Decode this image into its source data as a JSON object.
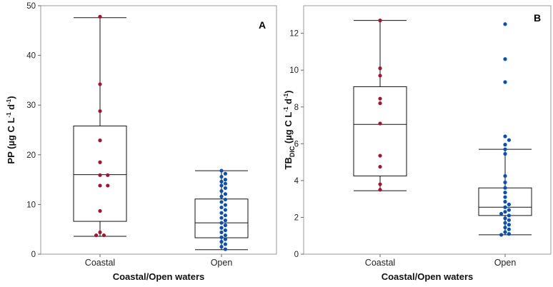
{
  "chart_data": [
    {
      "type": "box",
      "panel_label": "A",
      "xlabel": "Coastal/Open waters",
      "ylabel": {
        "main": "PP (µg C L",
        "sup1": "-1",
        "mid": " d",
        "sup2": "-1",
        "end": ")"
      },
      "ylim": [
        0,
        50
      ],
      "yticks": [
        0,
        10,
        20,
        30,
        40,
        50
      ],
      "categories": [
        "Coastal",
        "Open"
      ],
      "colors": {
        "Coastal": "#a0162e",
        "Open": "#0b4fb0"
      },
      "grid": false,
      "boxes": [
        {
          "category": "Coastal",
          "min": 3.6,
          "q1": 6.6,
          "median": 16.0,
          "q3": 25.8,
          "max": 47.6
        },
        {
          "category": "Open",
          "min": 0.9,
          "q1": 3.3,
          "median": 6.3,
          "q3": 11.1,
          "max": 16.8
        }
      ],
      "points": [
        {
          "category": "Coastal",
          "values": [
            47.8,
            34.2,
            28.8,
            22.9,
            18.5,
            15.9,
            15.9,
            13.8,
            13.8,
            8.7,
            4.4,
            3.8,
            3.8
          ]
        },
        {
          "category": "Open",
          "values": [
            16.8,
            16.2,
            15.6,
            15.0,
            14.6,
            14.2,
            13.8,
            13.3,
            12.7,
            12.1,
            11.6,
            11.0,
            10.5,
            9.9,
            9.4,
            8.9,
            8.3,
            7.8,
            7.3,
            6.8,
            6.3,
            5.8,
            5.3,
            4.8,
            4.4,
            3.8,
            3.4,
            3.0,
            2.5,
            2.0,
            1.5,
            1.0
          ]
        }
      ]
    },
    {
      "type": "box",
      "panel_label": "B",
      "xlabel": "Coastal/Open waters",
      "ylabel": {
        "main": "TB",
        "sub": "DIC",
        "rest": " (µg C L",
        "sup1": "-1",
        "mid": " d",
        "sup2": "-1",
        "end": ")"
      },
      "ylim": [
        0,
        13.5
      ],
      "yticks": [
        0,
        2,
        4,
        6,
        8,
        10,
        12
      ],
      "categories": [
        "Coastal",
        "Open"
      ],
      "colors": {
        "Coastal": "#a0162e",
        "Open": "#0b4fb0"
      },
      "grid": false,
      "boxes": [
        {
          "category": "Coastal",
          "min": 3.45,
          "q1": 4.25,
          "median": 7.05,
          "q3": 9.1,
          "max": 12.7
        },
        {
          "category": "Open",
          "min": 1.05,
          "q1": 2.1,
          "median": 2.55,
          "q3": 3.6,
          "max": 5.7
        }
      ],
      "points": [
        {
          "category": "Coastal",
          "values": [
            12.7,
            10.1,
            9.7,
            8.45,
            8.2,
            7.1,
            5.35,
            4.75,
            3.8,
            3.5
          ]
        },
        {
          "category": "Open",
          "values": [
            12.5,
            10.6,
            9.35,
            6.4,
            6.2,
            5.95,
            5.7,
            5.45,
            4.25,
            3.9,
            3.6,
            3.35,
            3.1,
            2.85,
            2.7,
            2.55,
            2.4,
            2.3,
            2.2,
            2.1,
            1.95,
            1.85,
            1.7,
            1.6,
            1.45,
            1.35,
            1.2,
            1.1,
            1.05
          ]
        }
      ]
    }
  ]
}
